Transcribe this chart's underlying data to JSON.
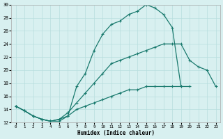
{
  "xlabel": "Humidex (Indice chaleur)",
  "line1_x": [
    0,
    1,
    2,
    3,
    4,
    5,
    6,
    7,
    8,
    9,
    10,
    11,
    12,
    13,
    14,
    15,
    16,
    17,
    18,
    19,
    20,
    21,
    22,
    23
  ],
  "line1_y": [
    14.5,
    13.8,
    13.0,
    12.5,
    12.2,
    12.2,
    13.0,
    17.5,
    19.5,
    23.0,
    25.5,
    27.0,
    27.5,
    28.5,
    29.0,
    30.0,
    29.5,
    28.5,
    26.5,
    17.5,
    null,
    null,
    null,
    null
  ],
  "line2_x": [
    0,
    1,
    2,
    3,
    4,
    5,
    6,
    7,
    8,
    9,
    10,
    11,
    12,
    13,
    14,
    15,
    16,
    17,
    18,
    19,
    20,
    21,
    22,
    23
  ],
  "line2_y": [
    14.5,
    13.8,
    13.0,
    12.5,
    12.2,
    12.5,
    13.5,
    15.0,
    16.5,
    18.0,
    19.5,
    21.0,
    21.5,
    22.0,
    22.5,
    23.0,
    23.5,
    24.0,
    24.0,
    24.0,
    21.5,
    20.5,
    20.0,
    17.5
  ],
  "line3_x": [
    0,
    1,
    2,
    3,
    4,
    5,
    6,
    7,
    8,
    9,
    10,
    11,
    12,
    13,
    14,
    15,
    16,
    17,
    18,
    19,
    20,
    21,
    22,
    23
  ],
  "line3_y": [
    14.5,
    13.8,
    13.0,
    12.5,
    12.2,
    12.5,
    13.0,
    14.0,
    14.5,
    15.0,
    15.5,
    16.0,
    16.5,
    17.0,
    17.0,
    17.5,
    17.5,
    17.5,
    17.5,
    17.5,
    17.5,
    null,
    null,
    null
  ],
  "color": "#1a7a6e",
  "bg_color": "#d8f0f0",
  "grid_color": "#b8dede",
  "ylim": [
    12,
    30
  ],
  "xlim": [
    -0.5,
    23.5
  ],
  "yticks": [
    12,
    14,
    16,
    18,
    20,
    22,
    24,
    26,
    28,
    30
  ],
  "xticks": [
    0,
    1,
    2,
    3,
    4,
    5,
    6,
    7,
    8,
    9,
    10,
    11,
    12,
    13,
    14,
    15,
    16,
    17,
    18,
    19,
    20,
    21,
    22,
    23
  ]
}
